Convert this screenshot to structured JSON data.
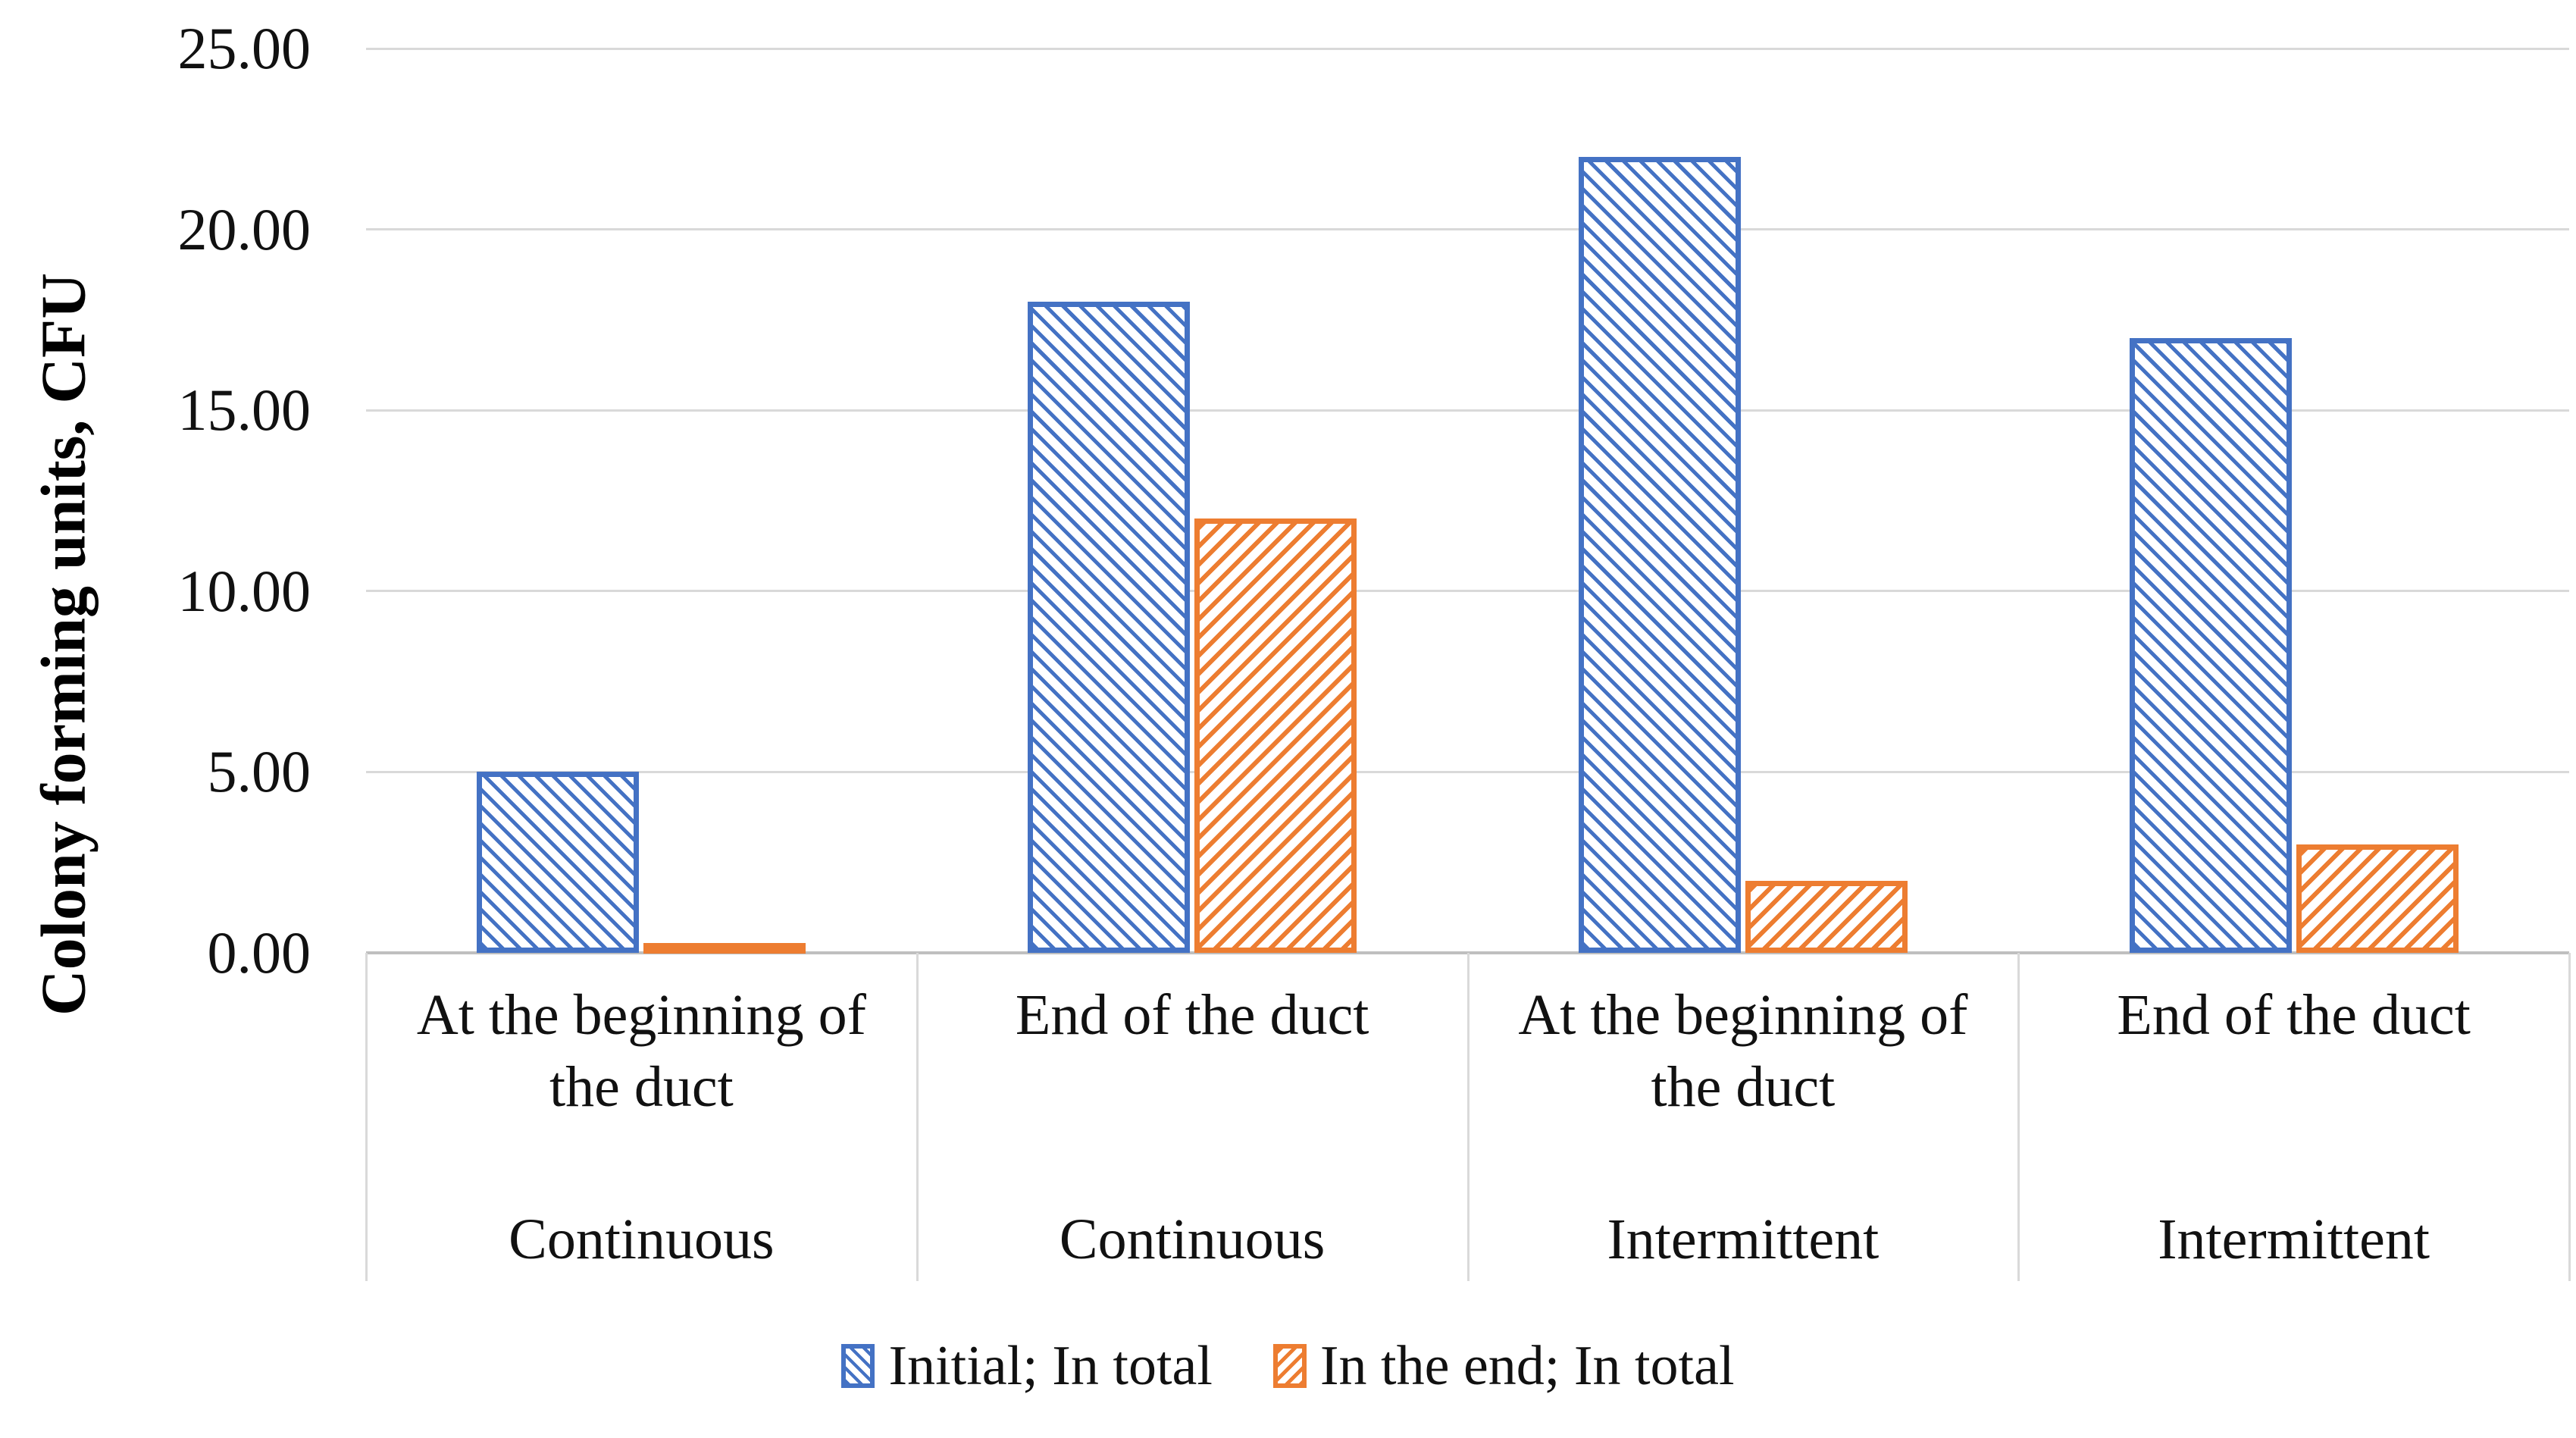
{
  "chart_data": {
    "type": "bar",
    "title": "",
    "xlabel": "",
    "ylabel": "Colony forming units, CFU",
    "ylim": [
      0,
      25
    ],
    "yticks": [
      0,
      5,
      10,
      15,
      20,
      25
    ],
    "ytick_labels": [
      "0.00",
      "5.00",
      "10.00",
      "15.00",
      "20.00",
      "25.00"
    ],
    "grid": true,
    "legend_position": "bottom",
    "categories": [
      {
        "label": "At the beginning of the duct",
        "group": "Continuous"
      },
      {
        "label": "End of the duct",
        "group": "Continuous"
      },
      {
        "label": "At the beginning of the duct",
        "group": "Intermittent"
      },
      {
        "label": "End of the duct",
        "group": "Intermittent"
      }
    ],
    "series": [
      {
        "name": "Initial; In total",
        "color": "#4472C4",
        "hatch": "\\",
        "values": [
          5.0,
          18.0,
          22.0,
          17.0
        ]
      },
      {
        "name": "In the end; In total",
        "color": "#ED7D31",
        "hatch": "/",
        "values": [
          0.1,
          12.0,
          2.0,
          3.0
        ]
      }
    ]
  }
}
